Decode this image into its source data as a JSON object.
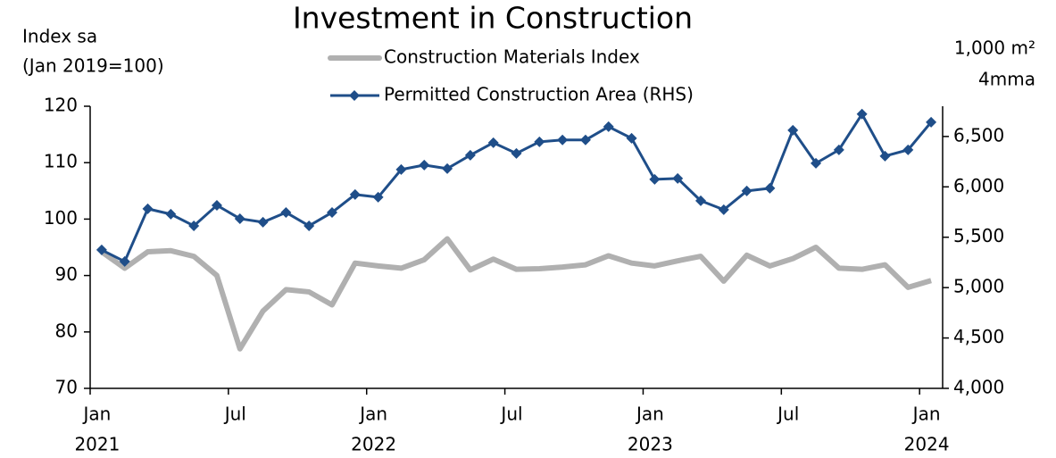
{
  "chart_data": {
    "type": "line",
    "title": "Investment in Construction",
    "y_axis_label": [
      "Index sa",
      "(Jan 2019=100)"
    ],
    "y2_axis_label": [
      "1,000 m²",
      "4mma"
    ],
    "categories": [
      "Jan",
      null,
      null,
      null,
      null,
      null,
      "Jul",
      null,
      null,
      null,
      null,
      null,
      "Jan",
      null,
      null,
      null,
      null,
      null,
      "Jul",
      null,
      null,
      null,
      null,
      null,
      "Jan",
      null,
      null,
      null,
      null,
      null,
      "Jul",
      null,
      null,
      null,
      null,
      null,
      "Jan"
    ],
    "year_labels": [
      "2021",
      "2022",
      "2023",
      "2024"
    ],
    "ylim": [
      70,
      120
    ],
    "yticks": [
      70,
      80,
      90,
      100,
      110,
      120
    ],
    "y2lim": [
      4000,
      6800
    ],
    "y2ticks": [
      {
        "value": 4000,
        "label": "4,000"
      },
      {
        "value": 4500,
        "label": "4,500"
      },
      {
        "value": 5000,
        "label": "5,000"
      },
      {
        "value": 5500,
        "label": "5,500"
      },
      {
        "value": 6000,
        "label": "6,000"
      },
      {
        "value": 6500,
        "label": "6,500"
      }
    ],
    "legend": "top",
    "series": [
      {
        "name": "Construction Materials Index",
        "color": "#b0b0b0",
        "marker": false,
        "values": [
          94.2,
          91.3,
          94.2,
          94.4,
          93.4,
          90,
          77,
          83.7,
          87.5,
          87.1,
          84.8,
          92.2,
          91.7,
          91.3,
          92.8,
          96.5,
          91,
          92.9,
          91.1,
          91.2,
          91.5,
          91.9,
          93.5,
          92.2,
          91.7,
          92.6,
          93.4,
          89,
          93.6,
          91.7,
          93,
          95,
          91.3,
          91.1,
          91.9,
          87.9,
          89.1
        ]
      },
      {
        "name": "Permitted Construction Area (RHS)",
        "color": "#1f4e89",
        "marker": true,
        "axis": "y2",
        "values": [
          5374,
          5259,
          5782,
          5729,
          5613,
          5817,
          5684,
          5649,
          5746,
          5613,
          5746,
          5924,
          5897,
          6172,
          6216,
          6181,
          6314,
          6438,
          6332,
          6447,
          6465,
          6465,
          6597,
          6482,
          6074,
          6083,
          5862,
          5773,
          5959,
          5986,
          6562,
          6234,
          6367,
          6722,
          6305,
          6367,
          6642
        ]
      }
    ]
  }
}
